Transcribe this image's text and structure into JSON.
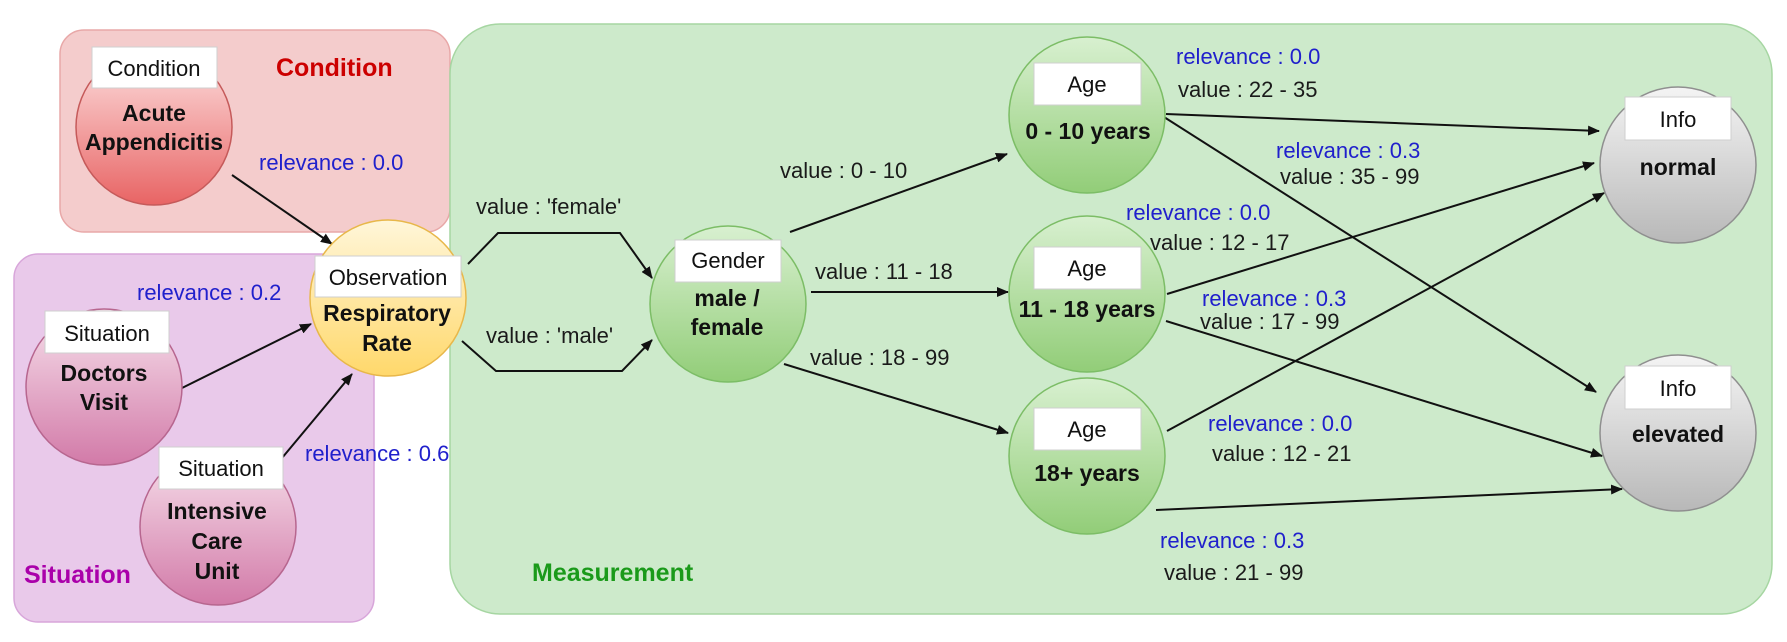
{
  "regions": {
    "condition": "Condition",
    "situation": "Situation",
    "measurement": "Measurement"
  },
  "nodes": {
    "acute": {
      "type": "Condition",
      "name1": "Acute",
      "name2": "Appendicitis"
    },
    "doctors": {
      "type": "Situation",
      "name1": "Doctors",
      "name2": "Visit"
    },
    "icu": {
      "type": "Situation",
      "name1": "Intensive",
      "name2": "Care",
      "name3": "Unit"
    },
    "observation": {
      "type": "Observation",
      "name1": "Respiratory",
      "name2": "Rate"
    },
    "gender": {
      "type": "Gender",
      "name1": "male /",
      "name2": "female"
    },
    "age1": {
      "type": "Age",
      "name1": "0 - 10 years"
    },
    "age2": {
      "type": "Age",
      "name1": "11 - 18 years"
    },
    "age3": {
      "type": "Age",
      "name1": "18+ years"
    },
    "info_normal": {
      "type": "Info",
      "name1": "normal"
    },
    "info_elevated": {
      "type": "Info",
      "name1": "elevated"
    }
  },
  "edges": {
    "acute_rel": "relevance : 0.0",
    "doctors_rel": "relevance : 0.2",
    "icu_rel": "relevance : 0.6",
    "female": "value : 'female'",
    "male": "value : 'male'",
    "g_age1": "value : 0 - 10",
    "g_age2": "value : 11 - 18",
    "g_age3": "value : 18 - 99",
    "a1_rel_a": "relevance : 0.0",
    "a1_val_a": "value : 22 - 35",
    "a1_rel_b": "relevance : 0.3",
    "a1_val_b": "value : 35 - 99",
    "a2_rel_a": "relevance : 0.0",
    "a2_val_a": "value : 12 - 17",
    "a2_rel_b": "relevance : 0.3",
    "a2_val_b": "value : 17 - 99",
    "a3_rel_a": "relevance : 0.0",
    "a3_val_a": "value : 12 - 21",
    "a3_rel_b": "relevance : 0.3",
    "a3_val_b": "value : 21 - 99"
  },
  "colors": {
    "condition_region": "#f4cccc",
    "situation_region": "#e9c9ea",
    "measurement_region": "#cdeacb",
    "condition_label": "#cc0000",
    "situation_label": "#aa00aa",
    "measurement_label": "#1a9a1a",
    "relevance_text": "#2020cc"
  }
}
